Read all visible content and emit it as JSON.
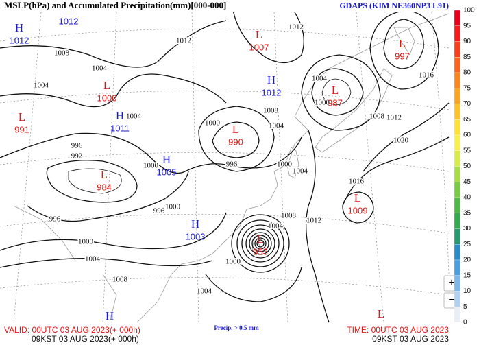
{
  "header": {
    "title": "MSLP(hPa) and Accumulated Precipitation(mm)[000-000]",
    "model": "GDAPS (KIM NE360NP3 L91)"
  },
  "footer": {
    "valid": "VALID: 00UTC 03 AUG 2023(+ 000h)",
    "valid_kst": "09KST 03 AUG 2023(+ 000h)",
    "precip_note": "Precip. > 0.5 mm",
    "time": "TIME: 00UTC 03 AUG 2023",
    "time_kst": "09KST 03 AUG 2023"
  },
  "zoom": {
    "in": "+",
    "out": "−"
  },
  "colorbar": {
    "ticks": [
      100,
      95,
      90,
      85,
      80,
      75,
      70,
      65,
      60,
      55,
      50,
      45,
      40,
      35,
      30,
      25,
      20,
      15,
      10,
      5,
      0
    ],
    "colors": [
      "#e8001a",
      "#f21c1c",
      "#f5401e",
      "#f7641e",
      "#f9871f",
      "#fba623",
      "#fcc22b",
      "#fde03a",
      "#f7ef4f",
      "#d7ec4a",
      "#a9dd46",
      "#79cc45",
      "#4fba47",
      "#34a84f",
      "#2a9870",
      "#2d8ac9",
      "#4c9ee0",
      "#7db8ea",
      "#b0d2f0",
      "#e8eef4"
    ]
  },
  "centers": [
    {
      "kind": "H",
      "value": 1012
    },
    {
      "kind": "H",
      "value": 1012
    },
    {
      "kind": "L",
      "value": 1007
    },
    {
      "kind": "L",
      "value": 997
    },
    {
      "kind": "H",
      "value": 1012
    },
    {
      "kind": "L",
      "value": 1000
    },
    {
      "kind": "L",
      "value": 987
    },
    {
      "kind": "H",
      "value": 1011
    },
    {
      "kind": "L",
      "value": 991
    },
    {
      "kind": "L",
      "value": 990
    },
    {
      "kind": "H",
      "value": 1005
    },
    {
      "kind": "L",
      "value": 984
    },
    {
      "kind": "L",
      "value": 1009
    },
    {
      "kind": "H",
      "value": 1003
    },
    {
      "kind": "L",
      "value": 953
    },
    {
      "kind": "H"
    },
    {
      "kind": "L"
    }
  ],
  "isobar_labels": [
    1008,
    1004,
    1004,
    1012,
    1012,
    1008,
    1004,
    1000,
    996,
    1000,
    1000,
    1004,
    996,
    992,
    1000,
    996,
    996,
    1000,
    1004,
    1004,
    1008,
    1000,
    1004,
    1008,
    1012,
    1016,
    1008,
    1012,
    1020,
    1016,
    1004,
    1000,
    1004
  ]
}
